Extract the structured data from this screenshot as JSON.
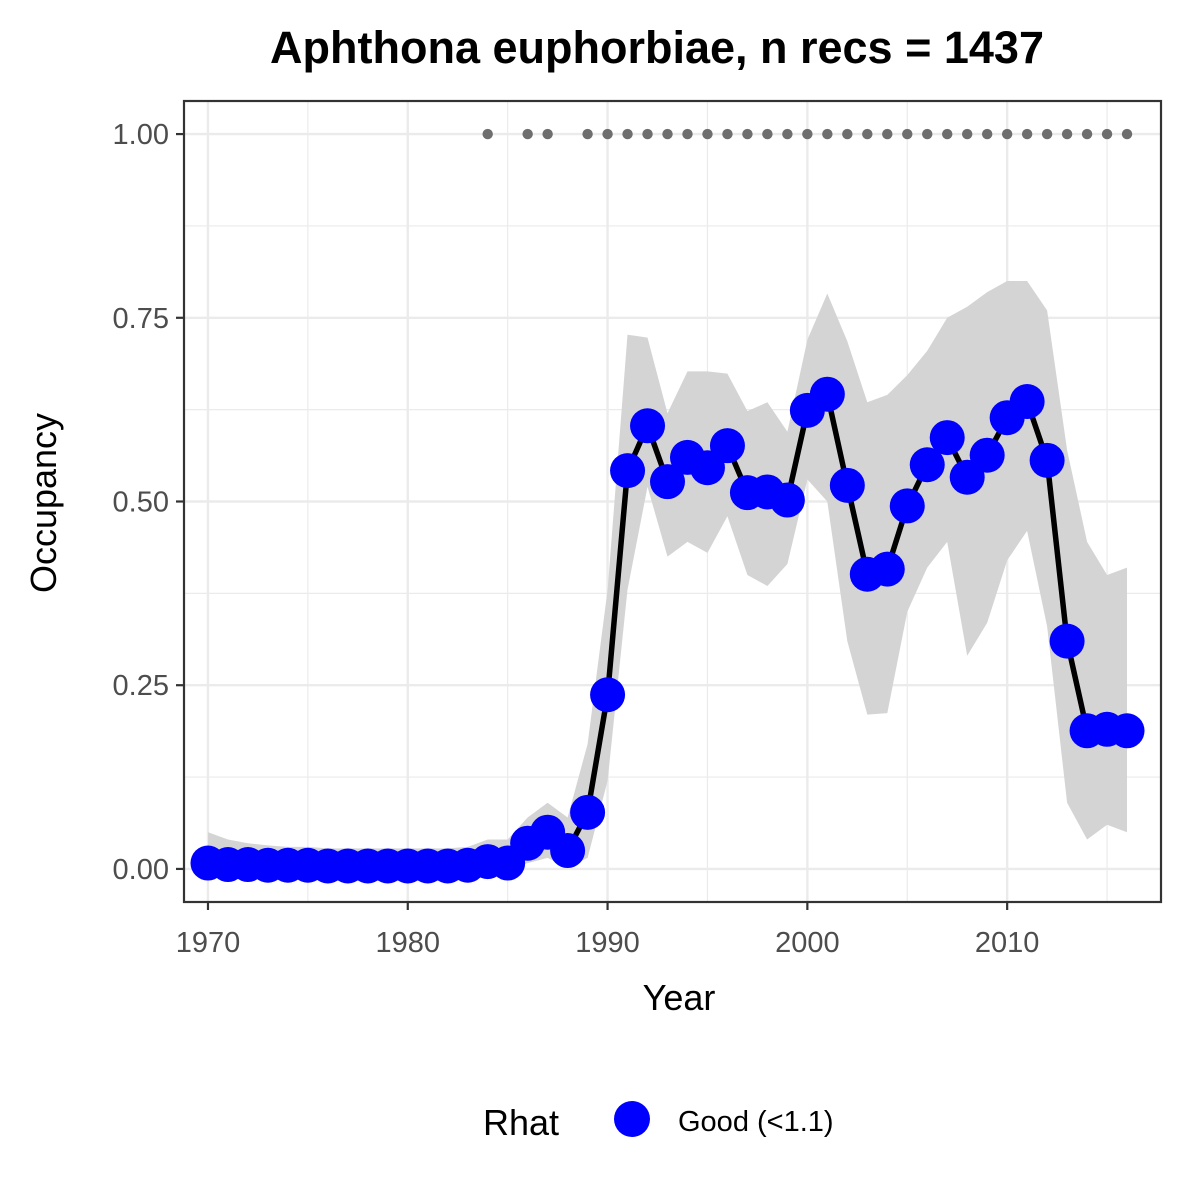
{
  "chart_data": {
    "type": "line",
    "title": "Aphthona euphorbiae, n recs = 1437",
    "xlabel": "Year",
    "ylabel": "Occupancy",
    "xlim": [
      1968.8,
      2017.7
    ],
    "ylim": [
      -0.045,
      1.045
    ],
    "x_ticks": [
      1970,
      1980,
      1990,
      2000,
      2010
    ],
    "x_tick_labels": [
      "1970",
      "1980",
      "1990",
      "2000",
      "2010"
    ],
    "y_ticks": [
      0,
      0.25,
      0.5,
      0.75,
      1
    ],
    "y_tick_labels": [
      "0.00",
      "0.25",
      "0.50",
      "0.75",
      "1.00"
    ],
    "x_minor_ticks": [
      1975,
      1985,
      1995,
      2005,
      2015
    ],
    "y_minor_ticks": [
      0.125,
      0.375,
      0.625,
      0.875
    ],
    "grid": true,
    "colors": {
      "points": "#0000ff",
      "line": "#000000",
      "ribbon": "#d4d4d4",
      "record_dots": "#6e6e6e",
      "grid": "#ebebeb",
      "panel_border": "#333333"
    },
    "years": [
      1970,
      1971,
      1972,
      1973,
      1974,
      1975,
      1976,
      1977,
      1978,
      1979,
      1980,
      1981,
      1982,
      1983,
      1984,
      1985,
      1986,
      1987,
      1988,
      1989,
      1990,
      1991,
      1992,
      1993,
      1994,
      1995,
      1996,
      1997,
      1998,
      1999,
      2000,
      2001,
      2002,
      2003,
      2004,
      2005,
      2006,
      2007,
      2008,
      2009,
      2010,
      2011,
      2012,
      2013,
      2014,
      2015,
      2016
    ],
    "occupancy": [
      0.008,
      0.006,
      0.006,
      0.005,
      0.005,
      0.005,
      0.004,
      0.004,
      0.004,
      0.004,
      0.004,
      0.004,
      0.004,
      0.005,
      0.01,
      0.008,
      0.035,
      0.05,
      0.025,
      0.077,
      0.237,
      0.542,
      0.603,
      0.527,
      0.56,
      0.546,
      0.576,
      0.512,
      0.513,
      0.502,
      0.624,
      0.646,
      0.522,
      0.401,
      0.408,
      0.494,
      0.55,
      0.587,
      0.533,
      0.563,
      0.614,
      0.636,
      0.556,
      0.31,
      0.188,
      0.19,
      0.188
    ],
    "lower": [
      0.001,
      0.001,
      0.001,
      0.001,
      0.001,
      0.001,
      0.001,
      0.001,
      0.001,
      0.001,
      0.001,
      0.001,
      0.001,
      0.001,
      0.001,
      0.001,
      0.008,
      0.015,
      0.002,
      0.015,
      0.12,
      0.38,
      0.52,
      0.425,
      0.445,
      0.43,
      0.48,
      0.4,
      0.385,
      0.415,
      0.53,
      0.5,
      0.31,
      0.21,
      0.212,
      0.35,
      0.41,
      0.445,
      0.29,
      0.335,
      0.42,
      0.46,
      0.33,
      0.09,
      0.04,
      0.06,
      0.05
    ],
    "upper": [
      0.05,
      0.04,
      0.035,
      0.032,
      0.03,
      0.03,
      0.028,
      0.028,
      0.028,
      0.028,
      0.028,
      0.028,
      0.028,
      0.03,
      0.04,
      0.04,
      0.07,
      0.09,
      0.07,
      0.17,
      0.38,
      0.727,
      0.723,
      0.62,
      0.677,
      0.677,
      0.674,
      0.623,
      0.635,
      0.595,
      0.72,
      0.783,
      0.718,
      0.635,
      0.645,
      0.672,
      0.705,
      0.75,
      0.765,
      0.785,
      0.8,
      0.8,
      0.76,
      0.57,
      0.445,
      0.4,
      0.41
    ],
    "rhat": "Good (<1.1)",
    "record_years": [
      1984,
      1986,
      1987,
      1989,
      1990,
      1991,
      1992,
      1993,
      1994,
      1995,
      1996,
      1997,
      1998,
      1999,
      2000,
      2001,
      2002,
      2003,
      2004,
      2005,
      2006,
      2007,
      2008,
      2009,
      2010,
      2011,
      2012,
      2013,
      2014,
      2015,
      2016
    ],
    "record_level": 1.0,
    "legend": {
      "title": "Rhat",
      "label": "Good (<1.1)",
      "position": "bottom"
    }
  }
}
